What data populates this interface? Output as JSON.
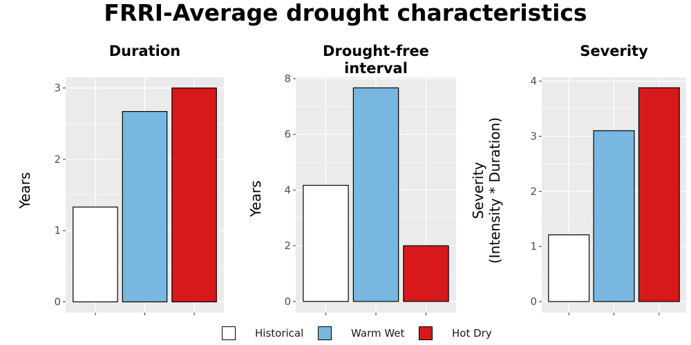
{
  "title": "FRRI-Average drought characteristics",
  "colors": {
    "panel_background": "#EBEBEB",
    "gridline": "#FFFFFF",
    "bar_outline": "#000000",
    "axis_text": "#4D4D4D"
  },
  "legend": {
    "items": [
      {
        "name": "Historical",
        "color": "#FFFFFF"
      },
      {
        "name": "Warm Wet",
        "color": "#77B7E0"
      },
      {
        "name": "Hot Dry",
        "color": "#D7191C"
      }
    ]
  },
  "chart_data": [
    {
      "type": "bar",
      "title_lines": [
        "Duration"
      ],
      "ylabel_lines": [
        "Years"
      ],
      "categories": [
        "Historical",
        "Warm Wet",
        "Hot Dry"
      ],
      "values": [
        1.33,
        2.67,
        3.0
      ],
      "ylim": [
        -0.15,
        3.15
      ],
      "yticks": [
        0,
        1,
        2,
        3
      ],
      "grid": true
    },
    {
      "type": "bar",
      "title_lines": [
        "Drought-free",
        "interval"
      ],
      "ylabel_lines": [
        "Years"
      ],
      "categories": [
        "Historical",
        "Warm Wet",
        "Hot Dry"
      ],
      "values": [
        4.17,
        7.67,
        2.0
      ],
      "ylim": [
        -0.4,
        8.05
      ],
      "yticks": [
        0,
        2,
        4,
        6,
        8
      ],
      "grid": true
    },
    {
      "type": "bar",
      "title_lines": [
        "Severity"
      ],
      "ylabel_lines": [
        "Severity",
        "(Intensity * Duration)"
      ],
      "categories": [
        "Historical",
        "Warm Wet",
        "Hot Dry"
      ],
      "values": [
        1.21,
        3.1,
        3.88
      ],
      "ylim": [
        -0.2,
        4.07
      ],
      "yticks": [
        0,
        1,
        2,
        3,
        4
      ],
      "grid": true
    }
  ]
}
